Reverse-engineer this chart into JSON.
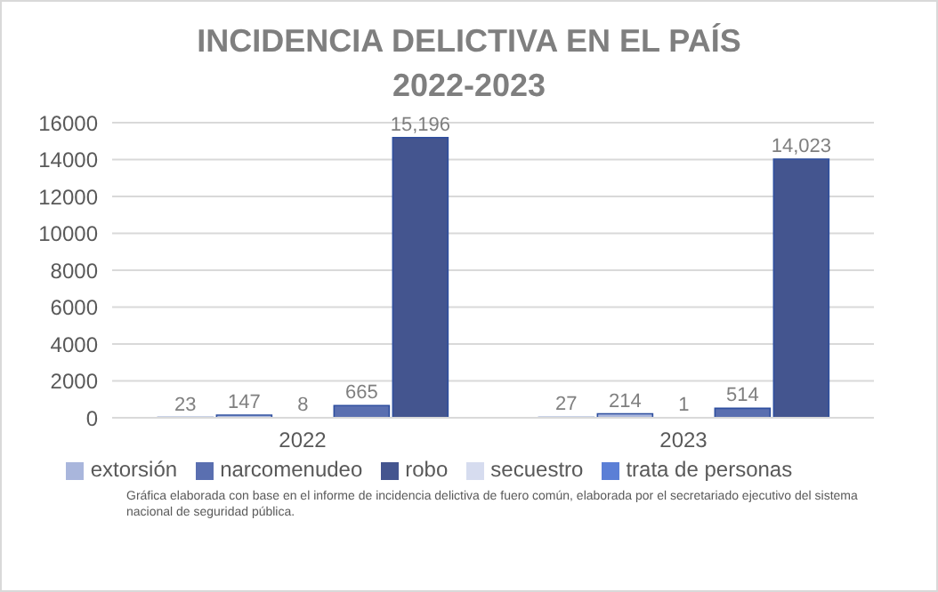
{
  "chart_data": {
    "type": "bar",
    "title": "INCIDENCIA  DELICTIVA  EN EL PAÍS",
    "subtitle": "2022-2023",
    "categories": [
      "2022",
      "2023"
    ],
    "series": [
      {
        "name": "secuestro",
        "color": "#d6dcef",
        "values": [
          23,
          27
        ],
        "value_labels": [
          "23",
          "27"
        ]
      },
      {
        "name": "extorsión",
        "color": "#a9b6dc",
        "values": [
          147,
          214
        ],
        "value_labels": [
          "147",
          "214"
        ]
      },
      {
        "name": "trata de personas",
        "color": "#5b7fd6",
        "values": [
          8,
          1
        ],
        "value_labels": [
          "8",
          "1"
        ]
      },
      {
        "name": "narcomenudeo",
        "color": "#5a6fb0",
        "values": [
          665,
          514
        ],
        "value_labels": [
          "665",
          "514"
        ]
      },
      {
        "name": "robo",
        "color": "#44558f",
        "values": [
          15196,
          14023
        ],
        "value_labels": [
          "15,196",
          "14,023"
        ]
      }
    ],
    "ylim": [
      0,
      16000
    ],
    "yticks": [
      0,
      2000,
      4000,
      6000,
      8000,
      10000,
      12000,
      14000,
      16000
    ],
    "grid": "y",
    "legend": "bottom",
    "annotations": [
      "Gráfica elaborada con base en el informe de incidencia delictiva de fuero común, elaborada por el secretariado ejecutivo del sistema nacional de seguridad pública."
    ]
  }
}
